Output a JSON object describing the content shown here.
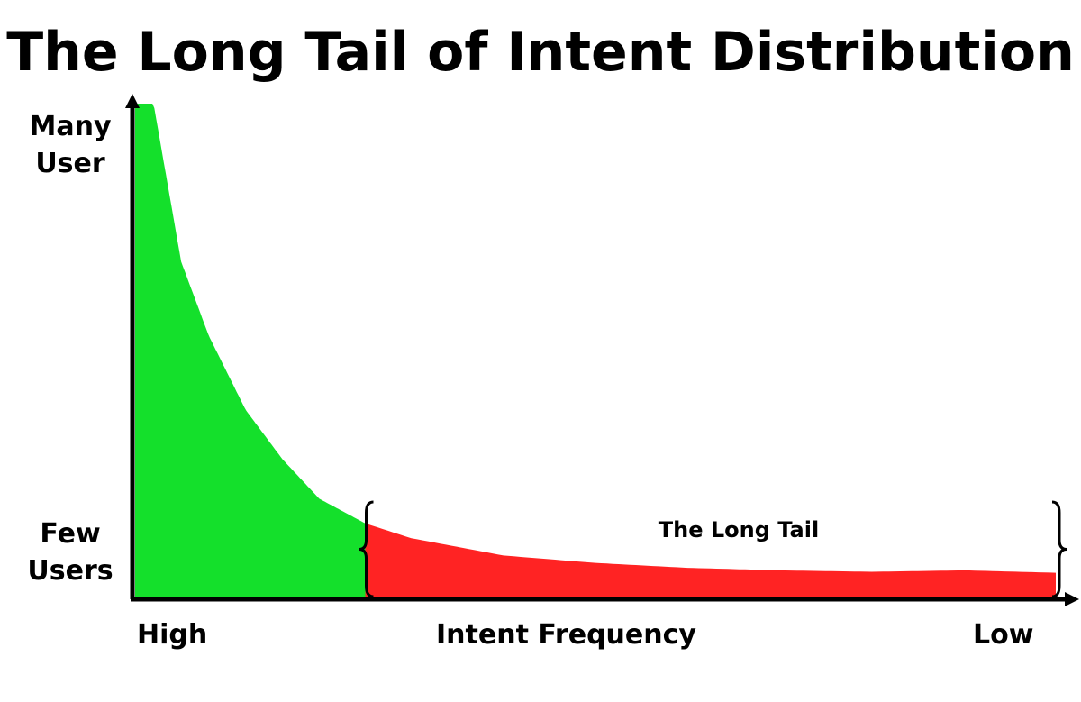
{
  "chart_data": {
    "type": "area",
    "title": "The Long Tail of Intent Distribution",
    "xlabel": "Intent Frequency",
    "x_tick_labels": {
      "start": "High",
      "end": "Low"
    },
    "y_tick_labels": {
      "top": [
        "Many",
        "User"
      ],
      "bottom": [
        "Few",
        "Users"
      ]
    },
    "annotation": "The Long Tail",
    "grid": false,
    "x": [
      0,
      0.02,
      0.05,
      0.08,
      0.12,
      0.16,
      0.2,
      0.25,
      0.3,
      0.4,
      0.5,
      0.6,
      0.7,
      0.8,
      0.9,
      1.0
    ],
    "y": [
      1.0,
      1.0,
      0.68,
      0.53,
      0.38,
      0.28,
      0.2,
      0.15,
      0.12,
      0.085,
      0.07,
      0.06,
      0.055,
      0.052,
      0.055,
      0.05
    ],
    "head_end_x": 0.25,
    "colors": {
      "head": "#14e02b",
      "tail": "#ff2323"
    }
  }
}
